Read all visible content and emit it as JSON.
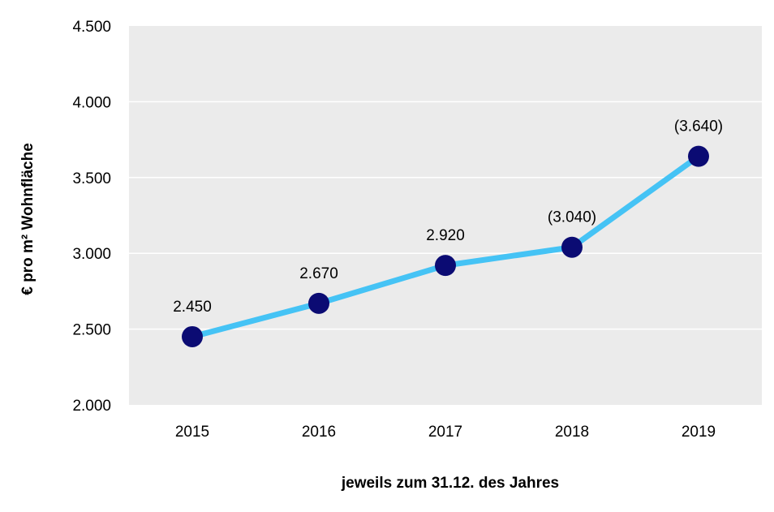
{
  "chart_data": {
    "type": "line",
    "title": "",
    "xlabel": "jeweils zum 31.12. des Jahres",
    "ylabel": "€ pro m² Wohnfläche",
    "categories": [
      "2015",
      "2016",
      "2017",
      "2018",
      "2019"
    ],
    "values": [
      2450,
      2670,
      2920,
      3040,
      3640
    ],
    "data_labels": [
      "2.450",
      "2.670",
      "2.920",
      "(3.040)",
      "(3.640)"
    ],
    "ylim": [
      2000,
      4500
    ],
    "yticks": [
      2000,
      2500,
      3000,
      3500,
      4000,
      4500
    ],
    "ytick_labels": [
      "2.000",
      "2.500",
      "3.000",
      "3.500",
      "4.000",
      "4.500"
    ],
    "grid": true,
    "legend": "none",
    "colors": {
      "plot_background": "#ebebeb",
      "gridline": "#ffffff",
      "line": "#45c3f5",
      "marker": "#0b0b73"
    }
  }
}
